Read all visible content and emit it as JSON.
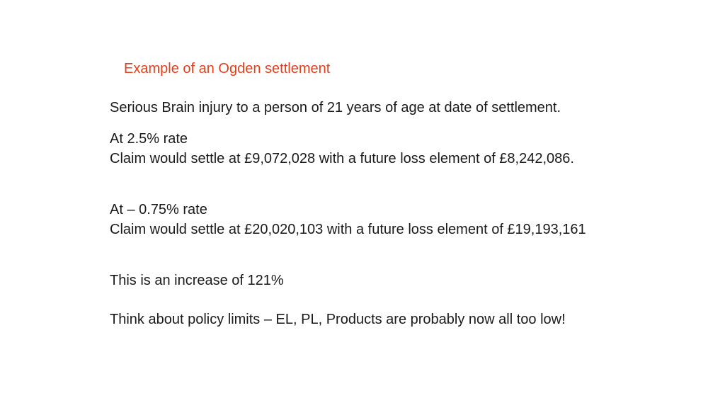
{
  "slide": {
    "title": "Example of an Ogden settlement",
    "paragraphs": [
      "Serious Brain injury to a person of 21 years of age at date of settlement.",
      "At 2.5% rate",
      "Claim would settle at £9,072,028 with a future loss element of £8,242,086.",
      "At – 0.75% rate",
      "Claim would settle at £20,020,103 with a future loss element of £19,193,161",
      "This is an increase of 121%",
      "Think about policy limits – EL, PL, Products are probably now all too low!"
    ],
    "colors": {
      "title": "#e2411c",
      "body": "#1a1a1a",
      "background": "#ffffff"
    }
  }
}
